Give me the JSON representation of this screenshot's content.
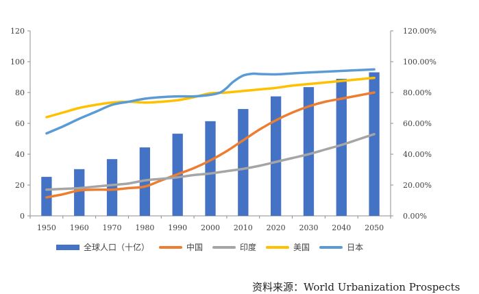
{
  "chart_data": {
    "type": "bar+line",
    "categories": [
      "1950",
      "1960",
      "1970",
      "1980",
      "1990",
      "2000",
      "2010",
      "2020",
      "2030",
      "2040",
      "2050"
    ],
    "left_axis": {
      "ticks": [
        "0",
        "20",
        "40",
        "60",
        "80",
        "100",
        "120"
      ],
      "ylim": [
        0,
        120
      ]
    },
    "right_axis": {
      "ticks": [
        "0.00%",
        "20.00%",
        "40.00%",
        "60.00%",
        "80.00%",
        "100.00%",
        "120.00%"
      ],
      "ylim": [
        0,
        120
      ]
    },
    "bar_series": {
      "name": "全球人口（十亿）",
      "color": "#4472C4",
      "axis": "left",
      "values": [
        25.3,
        30.3,
        36.8,
        44.4,
        53.3,
        61.4,
        69.3,
        77.5,
        83.5,
        88.9,
        93.1
      ]
    },
    "line_series": [
      {
        "name": "中国",
        "color": "#ED7D31",
        "axis": "right",
        "x": [
          1950,
          1955,
          1960,
          1965,
          1970,
          1975,
          1980,
          1985,
          1990,
          1995,
          2000,
          2005,
          2010,
          2015,
          2020,
          2025,
          2030,
          2035,
          2040,
          2045,
          2050
        ],
        "y": [
          12,
          14,
          16.5,
          17,
          17,
          18,
          19,
          23,
          27,
          31,
          36,
          42,
          49,
          56,
          62,
          67,
          71,
          74,
          76,
          78,
          80
        ]
      },
      {
        "name": "印度",
        "color": "#A5A5A5",
        "axis": "right",
        "x": [
          1950,
          1955,
          1960,
          1965,
          1970,
          1975,
          1980,
          1985,
          1990,
          1995,
          2000,
          2005,
          2010,
          2015,
          2020,
          2025,
          2030,
          2035,
          2040,
          2045,
          2050
        ],
        "y": [
          17,
          17.5,
          18,
          19,
          20,
          21,
          23,
          24,
          25,
          26.5,
          27.5,
          29,
          30.5,
          32.5,
          35,
          37.5,
          40,
          43,
          46,
          49.5,
          53
        ]
      },
      {
        "name": "美国",
        "color": "#FFC000",
        "axis": "right",
        "x": [
          1950,
          1955,
          1960,
          1965,
          1970,
          1975,
          1980,
          1985,
          1990,
          1995,
          2000,
          2005,
          2010,
          2015,
          2020,
          2025,
          2030,
          2035,
          2040,
          2045,
          2050
        ],
        "y": [
          64,
          67,
          70,
          72,
          73.5,
          74,
          73.5,
          74,
          75,
          77,
          79.5,
          80,
          81,
          82,
          83,
          84.5,
          85.5,
          86.5,
          87.5,
          88.5,
          89.5
        ]
      },
      {
        "name": "日本",
        "color": "#5B9BD5",
        "axis": "right",
        "x": [
          1950,
          1955,
          1960,
          1965,
          1970,
          1975,
          1980,
          1985,
          1990,
          1995,
          2000,
          2003,
          2005,
          2007,
          2010,
          2013,
          2015,
          2020,
          2025,
          2030,
          2035,
          2040,
          2045,
          2050
        ],
        "y": [
          53.5,
          58,
          63,
          67.5,
          72,
          74,
          76,
          77,
          77.5,
          77.5,
          78.5,
          80,
          83,
          87,
          91,
          92.2,
          92,
          91.8,
          92.4,
          93,
          93.5,
          94,
          94.5,
          95
        ]
      }
    ],
    "legend": [
      "全球人口（十亿）",
      "中国",
      "印度",
      "美国",
      "日本"
    ],
    "legend_position": "bottom",
    "grid": false
  },
  "source_text": "资料来源：World Urbanization Prospects"
}
